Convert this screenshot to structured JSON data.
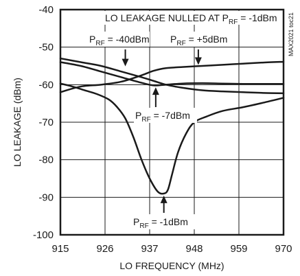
{
  "chart_data": {
    "type": "line",
    "title": "",
    "xlabel": "LO FREQUENCY (MHz)",
    "ylabel": "LO LEAKAGE (dBm)",
    "xlim": [
      915,
      970
    ],
    "ylim": [
      -100,
      -40
    ],
    "xticks": [
      915,
      926,
      937,
      948,
      959,
      970
    ],
    "yticks": [
      -40,
      -50,
      -60,
      -70,
      -80,
      -90,
      -100
    ],
    "grid": true,
    "watermark": "MAX2021 toc21",
    "header_annotation": {
      "text": "LO LEAKAGE NULLED AT P",
      "sub": "RF",
      "suffix": " = -1dBm"
    },
    "series": [
      {
        "name": "PRF = -40dBm",
        "x": [
          915,
          920,
          925,
          930,
          935,
          938,
          941,
          945,
          950,
          955,
          960,
          965,
          970
        ],
        "y": [
          -53,
          -54,
          -55,
          -56.5,
          -58,
          -59,
          -60,
          -60.8,
          -61.5,
          -61.8,
          -62,
          -62.2,
          -62.3
        ]
      },
      {
        "name": "PRF = +5dBm",
        "x": [
          915,
          920,
          925,
          930,
          935,
          938,
          941,
          945,
          950,
          955,
          960,
          965,
          970
        ],
        "y": [
          -54,
          -55,
          -56.5,
          -58,
          -59.5,
          -60.2,
          -60,
          -59.7,
          -59.6,
          -59.7,
          -59.8,
          -59.8,
          -59.8
        ]
      },
      {
        "name": "PRF = -7dBm",
        "x": [
          915,
          920,
          925,
          930,
          935,
          938,
          941,
          945,
          950,
          955,
          960,
          965,
          970
        ],
        "y": [
          -62,
          -60.5,
          -60,
          -59.2,
          -57.5,
          -56.3,
          -55.6,
          -55.3,
          -55,
          -54.7,
          -54.4,
          -54.1,
          -53.9
        ]
      },
      {
        "name": "PRF = -1dBm",
        "x": [
          915,
          918,
          921,
          924,
          927,
          929,
          931,
          933,
          935,
          937,
          939,
          940.5,
          941.5,
          942.5,
          944,
          946,
          948,
          951,
          955,
          960,
          965,
          970
        ],
        "y": [
          -59.7,
          -60.5,
          -61.5,
          -62.5,
          -64,
          -66,
          -69,
          -74,
          -80,
          -85,
          -88.5,
          -89,
          -88,
          -84,
          -78,
          -73,
          -70,
          -68.5,
          -67,
          -66,
          -64.8,
          -63.5
        ]
      }
    ],
    "annotations": [
      {
        "text": "P",
        "sub": "RF",
        "suffix": " = -40dBm",
        "x": 931,
        "y": -55.3
      },
      {
        "text": "P",
        "sub": "RF",
        "suffix": " = +5dBm",
        "x": 949,
        "y": -54.9
      },
      {
        "text": "P",
        "sub": "RF",
        "suffix": " = -7dBm",
        "x": 938.5,
        "y": -60.5
      },
      {
        "text": "P",
        "sub": "RF",
        "suffix": " = -1dBm",
        "x": 940.5,
        "y": -89
      }
    ]
  }
}
